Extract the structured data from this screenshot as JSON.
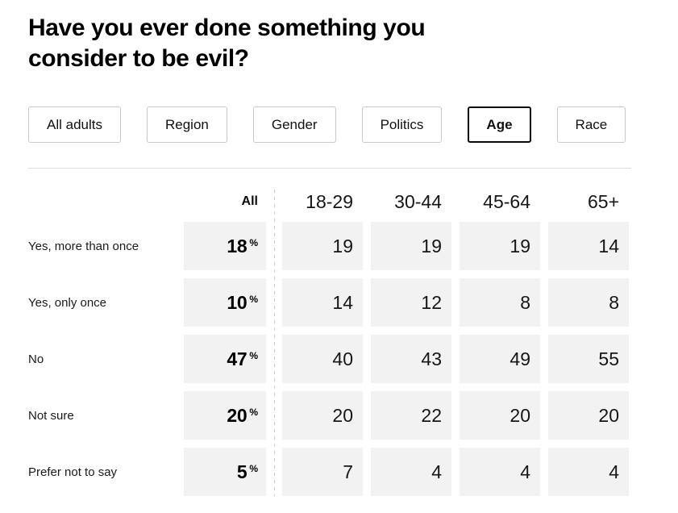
{
  "title": "Have you ever done something you consider to be evil?",
  "tabs": [
    {
      "label": "All adults",
      "active": false
    },
    {
      "label": "Region",
      "active": false
    },
    {
      "label": "Gender",
      "active": false
    },
    {
      "label": "Politics",
      "active": false
    },
    {
      "label": "Age",
      "active": true
    },
    {
      "label": "Race",
      "active": false
    }
  ],
  "chart_data": {
    "type": "table",
    "title": "Have you ever done something you consider to be evil?",
    "group_by": "Age",
    "unit": "%",
    "columns": [
      "All",
      "18-29",
      "30-44",
      "45-64",
      "65+"
    ],
    "rows": [
      {
        "label": "Yes, more than once",
        "all": 18,
        "values": [
          19,
          19,
          19,
          14
        ]
      },
      {
        "label": "Yes, only once",
        "all": 10,
        "values": [
          14,
          12,
          8,
          8
        ]
      },
      {
        "label": "No",
        "all": 47,
        "values": [
          40,
          43,
          49,
          55
        ]
      },
      {
        "label": "Not sure",
        "all": 20,
        "values": [
          20,
          22,
          20,
          20
        ]
      },
      {
        "label": "Prefer not to say",
        "all": 5,
        "values": [
          7,
          4,
          4,
          4
        ]
      }
    ]
  },
  "colors": {
    "cell_background": "#f2f2f3",
    "tab_border_inactive": "#c9c9c9",
    "tab_border_active": "#0a0a0a",
    "divider": "#dddddd",
    "dashed_separator": "#cccccc",
    "text": "#111111"
  }
}
